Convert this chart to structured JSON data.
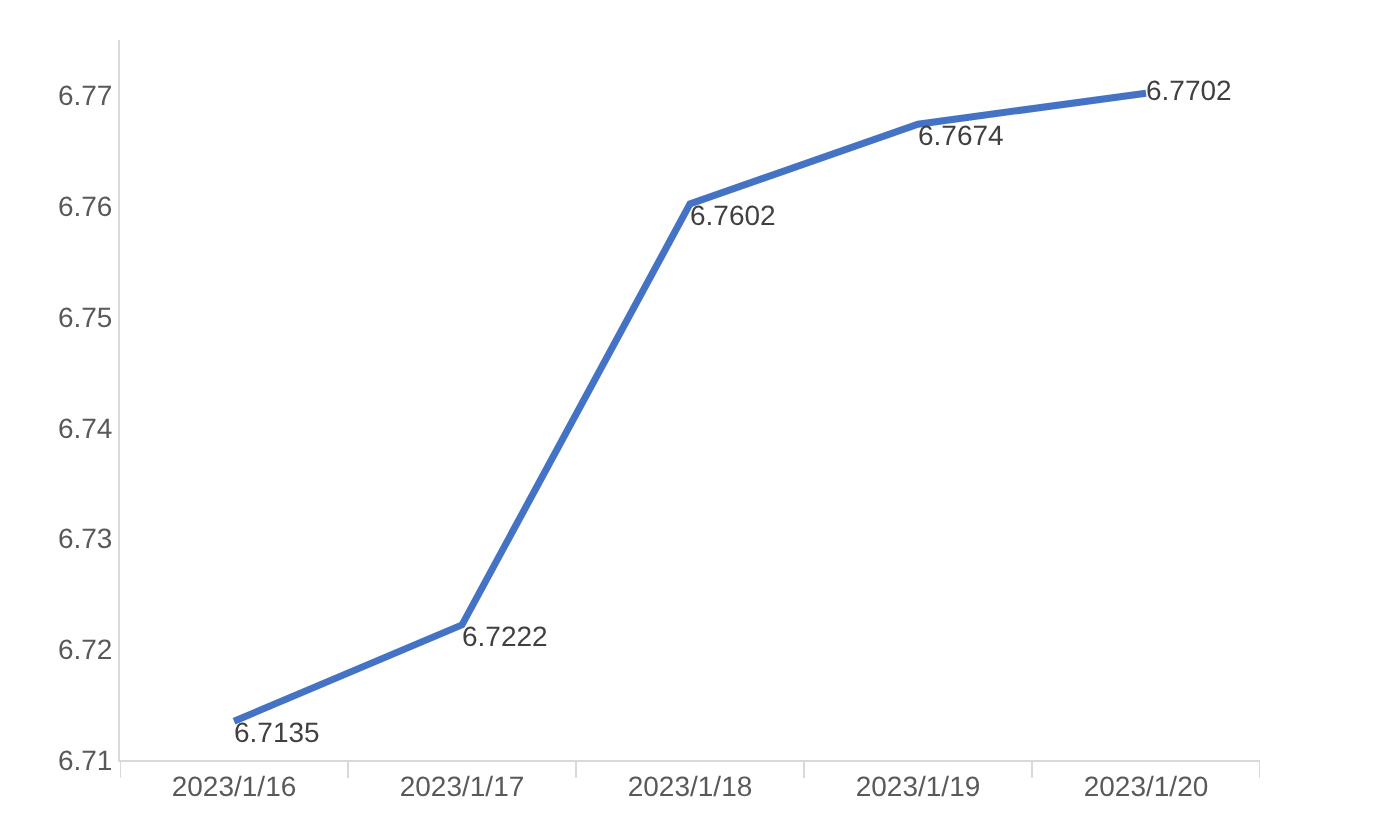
{
  "chart_data": {
    "type": "line",
    "categories": [
      "2023/1/16",
      "2023/1/17",
      "2023/1/18",
      "2023/1/19",
      "2023/1/20"
    ],
    "series": [
      {
        "color": "#4472c4",
        "values": [
          6.7135,
          6.7222,
          6.7602,
          6.7674,
          6.7702
        ]
      }
    ],
    "ylim": [
      6.71,
      6.775
    ],
    "yticks": [
      6.71,
      6.72,
      6.73,
      6.74,
      6.75,
      6.76,
      6.77
    ],
    "grid": false,
    "marker": "none",
    "line_style": "solid",
    "data_labels": true
  }
}
